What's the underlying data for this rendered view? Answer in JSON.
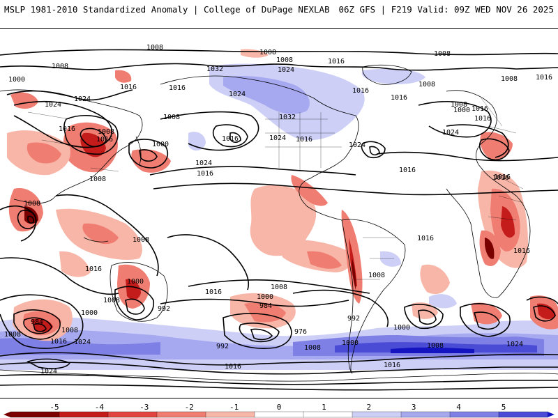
{
  "header": {
    "left_title": "MSLP 1981-2010 Standardized Anomaly | College of DuPage NEXLAB",
    "right_title": "06Z GFS | F219 Valid: 09Z WED NOV 26 2025"
  },
  "legend": {
    "ticks": [
      "-5",
      "-4",
      "-3",
      "-2",
      "-1",
      "0",
      "1",
      "2",
      "3",
      "4",
      "5"
    ],
    "colors": {
      "neg5": "#7a0000",
      "neg4": "#c41b1b",
      "neg3": "#e0463f",
      "neg2": "#ef7d72",
      "neg1": "#f8b6a8",
      "zero": "#ffffff",
      "pos1": "#cdcff7",
      "pos2": "#a6a8f0",
      "pos3": "#7e80e6",
      "pos4": "#4a4cd6",
      "pos5": "#1414c0"
    }
  },
  "isobars": {
    "labels": [
      "1008",
      "1008",
      "1008",
      "1016",
      "1008",
      "1008",
      "1000",
      "1016",
      "1024",
      "1032",
      "1016",
      "1008",
      "1008",
      "1016",
      "1008",
      "1000",
      "1016",
      "1024",
      "1032",
      "1024",
      "1016",
      "1016",
      "1016",
      "1024",
      "1024",
      "1016",
      "1016",
      "1008",
      "1000",
      "1016",
      "1024",
      "1008",
      "1016",
      "1024",
      "1016",
      "1016",
      "1016",
      "1008",
      "1008",
      "1016",
      "1008",
      "1000",
      "992",
      "1016",
      "1008",
      "1000",
      "984",
      "1008",
      "992",
      "976",
      "1008",
      "1000",
      "1008",
      "984",
      "1016",
      "1024",
      "992",
      "1008",
      "1016",
      "1000",
      "1008",
      "1024",
      "1016",
      "1000",
      "1024",
      "1008",
      "1016",
      "1024",
      "1016",
      "1016"
    ]
  }
}
